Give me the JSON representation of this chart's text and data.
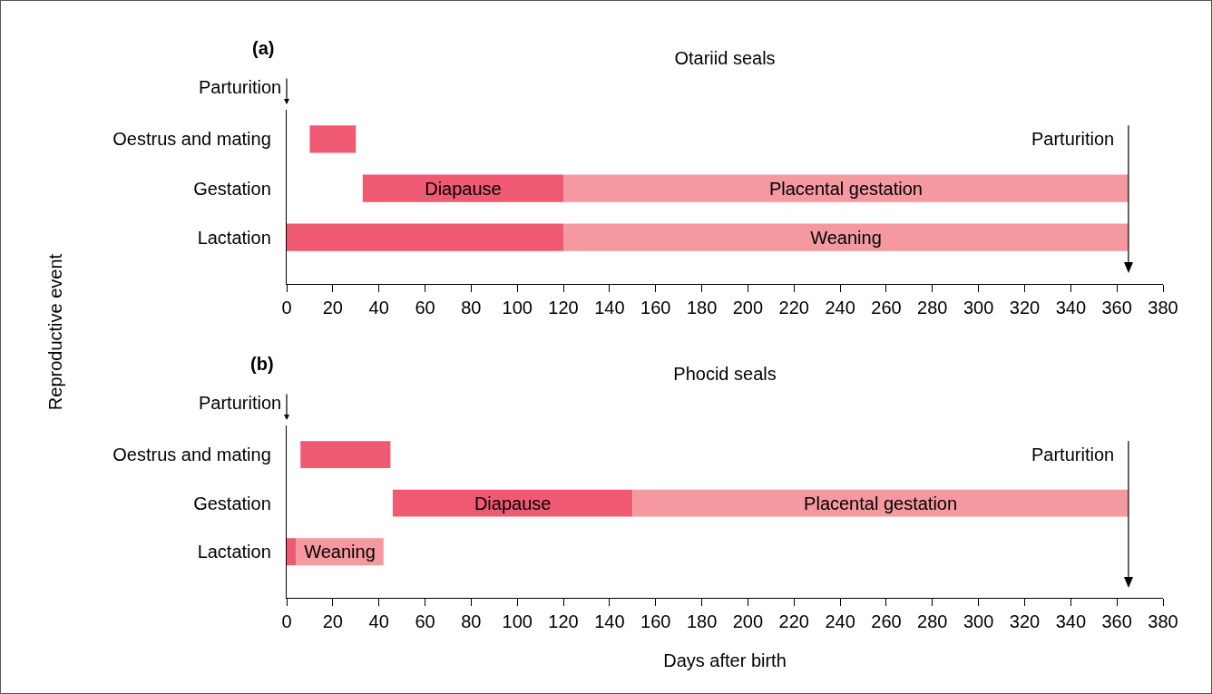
{
  "chart_data": [
    {
      "type": "bar",
      "orientation": "horizontal",
      "title": "Otariid seals",
      "ylabel": "Reproductive event",
      "annotations": [
        "(a)",
        "Parturition"
      ],
      "ref_lines": [
        {
          "axis": "x",
          "value": 365,
          "label": "Parturition",
          "color": "#000000"
        }
      ],
      "categories": [
        "Oestrus and mating",
        "Gestation",
        "Lactation"
      ],
      "series": [
        {
          "color": "#ef5a72",
          "values": [
            20,
            87,
            120
          ],
          "base": [
            10,
            33,
            0
          ],
          "value_labels": [
            null,
            "Diapause",
            null
          ]
        },
        {
          "color": "#f598a0",
          "values": [
            null,
            245,
            245
          ],
          "base": [
            null,
            120,
            120
          ],
          "value_labels": [
            null,
            "Placental gestation",
            "Weaning"
          ]
        }
      ],
      "xlim": [
        0,
        380
      ],
      "xticks": [
        0,
        20,
        40,
        60,
        80,
        100,
        120,
        140,
        160,
        180,
        200,
        220,
        240,
        260,
        280,
        300,
        320,
        340,
        360,
        380
      ],
      "grid": false
    },
    {
      "type": "bar",
      "orientation": "horizontal",
      "title": "Phocid seals",
      "xlabel": "Days after birth",
      "annotations": [
        "(b)",
        "Parturition"
      ],
      "ref_lines": [
        {
          "axis": "x",
          "value": 365,
          "label": "Parturition",
          "color": "#000000"
        }
      ],
      "categories": [
        "Oestrus and mating",
        "Gestation",
        "Lactation"
      ],
      "series": [
        {
          "color": "#ef5a72",
          "values": [
            39,
            104,
            4
          ],
          "base": [
            6,
            46,
            0
          ],
          "value_labels": [
            null,
            "Diapause",
            null
          ]
        },
        {
          "color": "#f598a0",
          "values": [
            null,
            215,
            38
          ],
          "base": [
            null,
            150,
            4
          ],
          "value_labels": [
            null,
            "Placental gestation",
            "Weaning"
          ]
        }
      ],
      "xlim": [
        0,
        380
      ],
      "xticks": [
        0,
        20,
        40,
        60,
        80,
        100,
        120,
        140,
        160,
        180,
        200,
        220,
        240,
        260,
        280,
        300,
        320,
        340,
        360,
        380
      ],
      "grid": false
    }
  ]
}
